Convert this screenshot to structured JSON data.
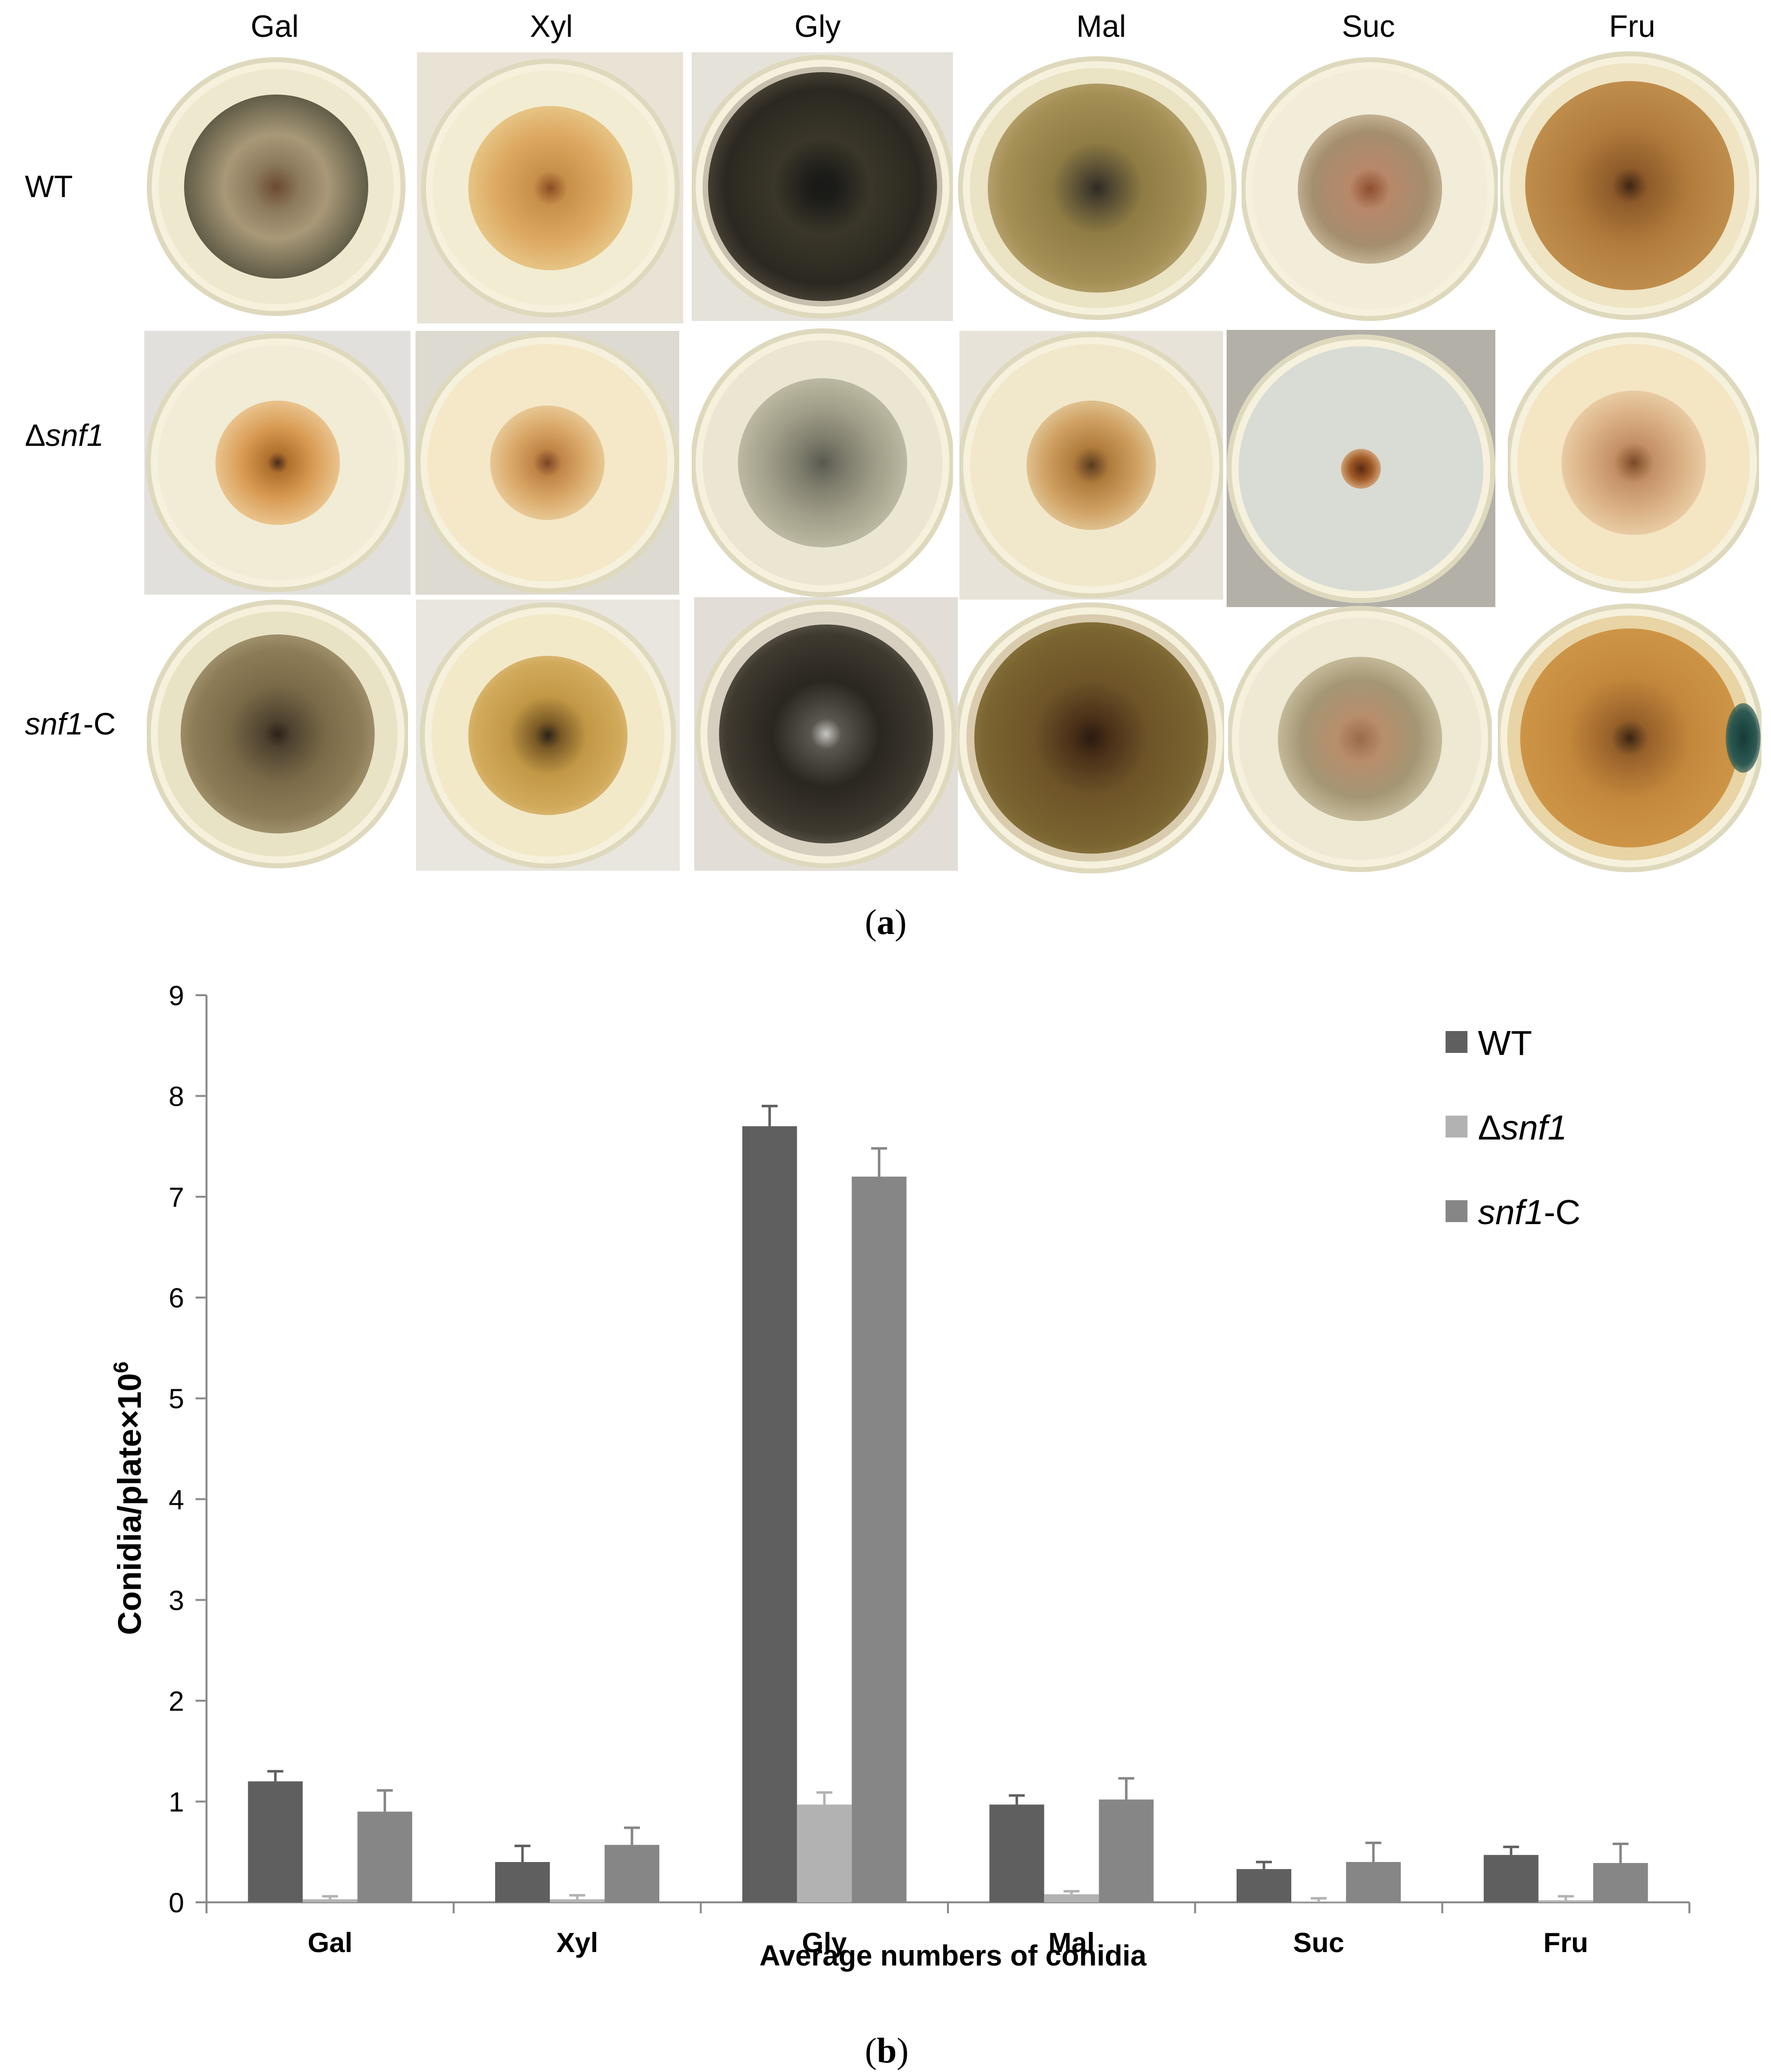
{
  "panel_a": {
    "column_labels": [
      "Gal",
      "Xyl",
      "Gly",
      "Mal",
      "Suc",
      "Fru"
    ],
    "row_labels": [
      {
        "prefix": "",
        "italic": "",
        "suffix": "WT"
      },
      {
        "prefix": "Δ",
        "italic": "snf1",
        "suffix": ""
      },
      {
        "prefix": "",
        "italic": "snf1",
        "suffix": "-C"
      }
    ],
    "caption": {
      "open": "(",
      "letter": "a",
      "close": ")"
    }
  },
  "panel_b": {
    "caption": {
      "open": "(",
      "letter": "b",
      "close": ")"
    }
  },
  "chart_data": {
    "type": "bar",
    "categories": [
      "Gal",
      "Xyl",
      "Gly",
      "Mal",
      "Suc",
      "Fru"
    ],
    "series": [
      {
        "name": "WT",
        "legend_prefix": "",
        "legend_italic": "",
        "legend_suffix": "WT",
        "color": "#5f5f5f",
        "values": [
          1.2,
          0.4,
          7.7,
          0.97,
          0.33,
          0.47
        ],
        "errors": [
          0.1,
          0.16,
          0.2,
          0.09,
          0.07,
          0.08
        ]
      },
      {
        "name": "Δsnf1",
        "legend_prefix": "Δ",
        "legend_italic": "snf1",
        "legend_suffix": "",
        "color": "#b2b2b2",
        "values": [
          0.03,
          0.03,
          0.97,
          0.08,
          0.01,
          0.02
        ],
        "errors": [
          0.03,
          0.04,
          0.12,
          0.03,
          0.03,
          0.04
        ]
      },
      {
        "name": "snf1-C",
        "legend_prefix": "",
        "legend_italic": "snf1",
        "legend_suffix": "-C",
        "color": "#868686",
        "values": [
          0.9,
          0.57,
          7.2,
          1.02,
          0.4,
          0.39
        ],
        "errors": [
          0.21,
          0.17,
          0.28,
          0.21,
          0.19,
          0.19
        ]
      }
    ],
    "ylim": [
      0,
      9
    ],
    "yticks": [
      0,
      1,
      2,
      3,
      4,
      5,
      6,
      7,
      8,
      9
    ],
    "ylabel": "Conidia/plate×10",
    "ylabel_superscript": "6",
    "xlabel": "Average numbers of conidia",
    "legend_position": "top-right"
  }
}
